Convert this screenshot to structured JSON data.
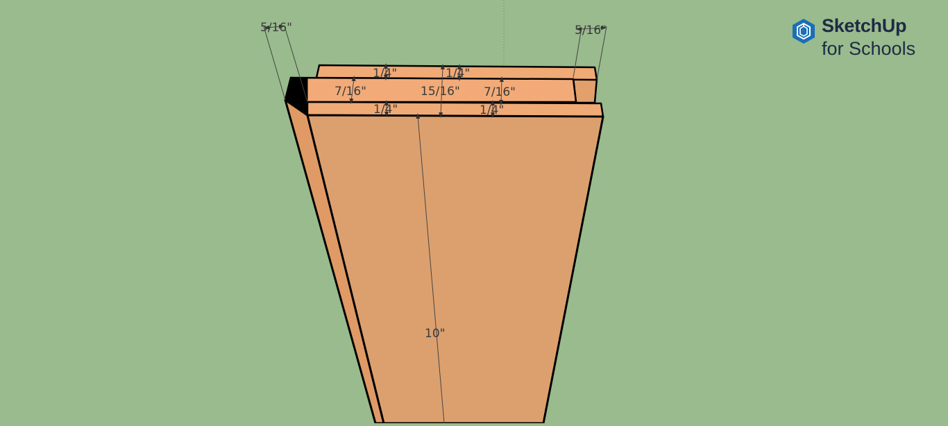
{
  "brand": {
    "name": "SketchUp",
    "subtitle": "for Schools",
    "logo_icon": "sketchup-logo-icon",
    "accent": "#1a6fb5"
  },
  "scene": {
    "background": "#99bb8d",
    "board_face": "#dca06e",
    "board_top": "#f0aa76",
    "board_side": "#e09a66",
    "edge_color": "#000000",
    "axis_color": "#2e9e4f"
  },
  "dimensions": {
    "tongue_offset_left": "5/16\"",
    "tongue_offset_right": "5/16\"",
    "top_shoulder_left": "1/4\"",
    "top_shoulder_right": "1/4\"",
    "groove_left": "7/16\"",
    "overall_thickness": "15/16\"",
    "groove_right": "7/16\"",
    "bottom_shoulder_left": "1/4\"",
    "bottom_shoulder_right": "1/4\"",
    "board_width": "10\""
  }
}
